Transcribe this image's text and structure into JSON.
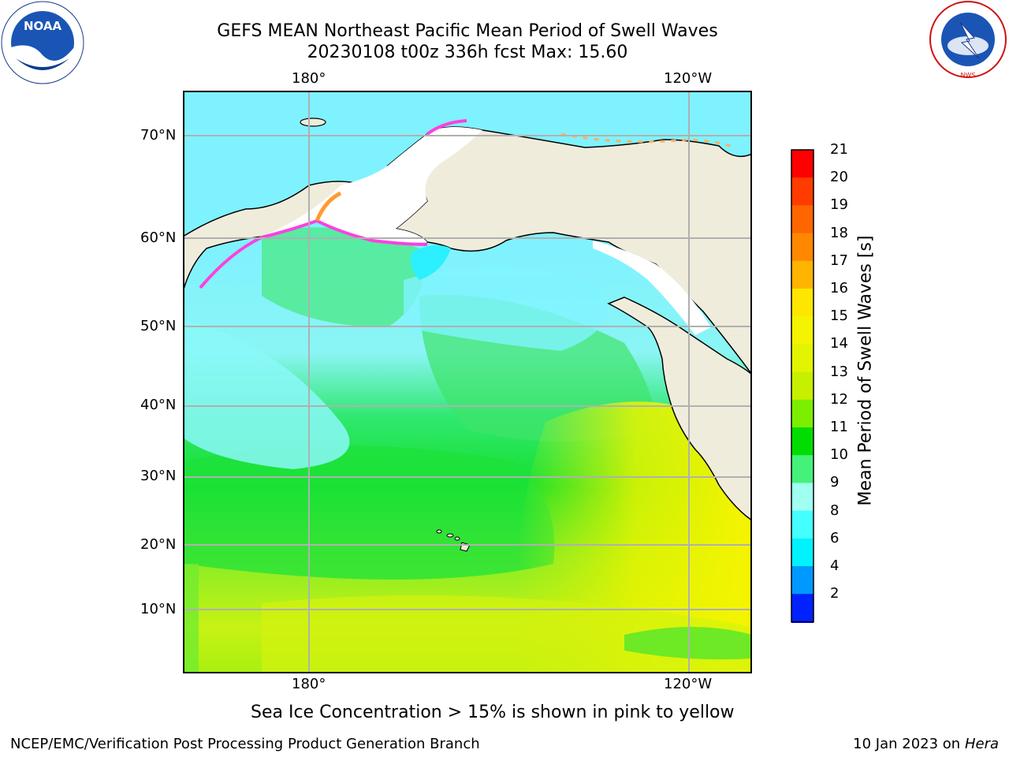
{
  "header": {
    "title_line1": "GEFS MEAN Northeast Pacific Mean Period of Swell Waves",
    "title_line2": "20230108 t00z 336h fcst   Max: 15.60"
  },
  "logos": {
    "left": "NOAA",
    "right": "NWS"
  },
  "map": {
    "lon_labels_top": [
      "180°",
      "120°W"
    ],
    "lon_labels_bottom": [
      "180°",
      "120°W"
    ],
    "lat_labels": [
      "70°N",
      "60°N",
      "50°N",
      "40°N",
      "30°N",
      "20°N",
      "10°N"
    ],
    "land_color": "#efecdc",
    "grid_color": "#b0b0b0"
  },
  "colorbar": {
    "label": "Mean Period of Swell Waves [s]",
    "ticks": [
      "21",
      "20",
      "19",
      "18",
      "17",
      "16",
      "15",
      "14",
      "13",
      "12",
      "11",
      "10",
      "9",
      "8",
      "6",
      "4",
      "2"
    ],
    "colors": [
      "#ff0000",
      "#ff3c00",
      "#ff6600",
      "#ff8800",
      "#ffb400",
      "#ffe600",
      "#f4f400",
      "#e2f400",
      "#c6f000",
      "#7cef00",
      "#00dd00",
      "#44f27a",
      "#a0fff0",
      "#44ffff",
      "#00f2ff",
      "#0099ff",
      "#0022ff"
    ],
    "extend_color": "#0000ff"
  },
  "note": "Sea Ice Concentration > 15% is shown in pink to yellow",
  "footer": {
    "left": "NCEP/EMC/Verification Post Processing Product Generation Branch",
    "right_prefix": "10 Jan 2023 on ",
    "right_host": "Hera"
  }
}
